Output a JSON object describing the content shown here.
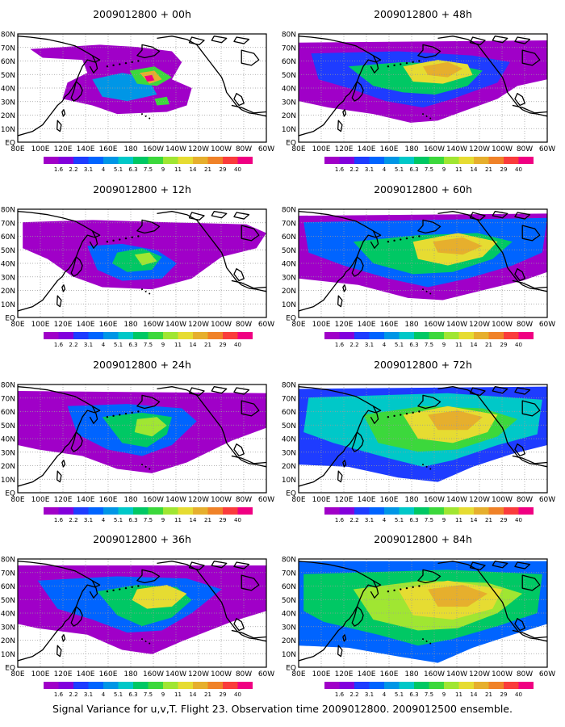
{
  "figure": {
    "caption": "Signal Variance for u,v,T. Flight 23. Observation time 2009012800. 2009012500 ensemble.",
    "panels": [
      {
        "title": "2009012800 + 00h",
        "forecast_hour": 0
      },
      {
        "title": "2009012800 + 48h",
        "forecast_hour": 48
      },
      {
        "title": "2009012800 + 12h",
        "forecast_hour": 12
      },
      {
        "title": "2009012800 + 60h",
        "forecast_hour": 60
      },
      {
        "title": "2009012800 + 24h",
        "forecast_hour": 24
      },
      {
        "title": "2009012800 + 72h",
        "forecast_hour": 72
      },
      {
        "title": "2009012800 + 36h",
        "forecast_hour": 36
      },
      {
        "title": "2009012800 + 84h",
        "forecast_hour": 84
      }
    ],
    "lon_labels": [
      "80E",
      "100E",
      "120E",
      "140E",
      "160E",
      "180",
      "160W",
      "140W",
      "120W",
      "100W",
      "80W",
      "60W"
    ],
    "lat_labels": [
      "EQ",
      "10N",
      "20N",
      "30N",
      "40N",
      "50N",
      "60N",
      "70N",
      "80N"
    ],
    "colorbar": {
      "labels": [
        "1.6",
        "2.2",
        "3.1",
        "4",
        "5.1",
        "6.3",
        "7.5",
        "9",
        "11",
        "14",
        "21",
        "29",
        "40"
      ],
      "colors": [
        "#a000c8",
        "#8200dc",
        "#1e3cff",
        "#0064ff",
        "#0096e6",
        "#00c8c8",
        "#00c864",
        "#3cd83c",
        "#a0e632",
        "#e6dc32",
        "#e6af2d",
        "#f08228",
        "#fa3c3c",
        "#f00082"
      ]
    },
    "map_colors": {
      "land_outline": "#000000",
      "grid": "#9a9a9a",
      "background": "#ffffff"
    }
  }
}
